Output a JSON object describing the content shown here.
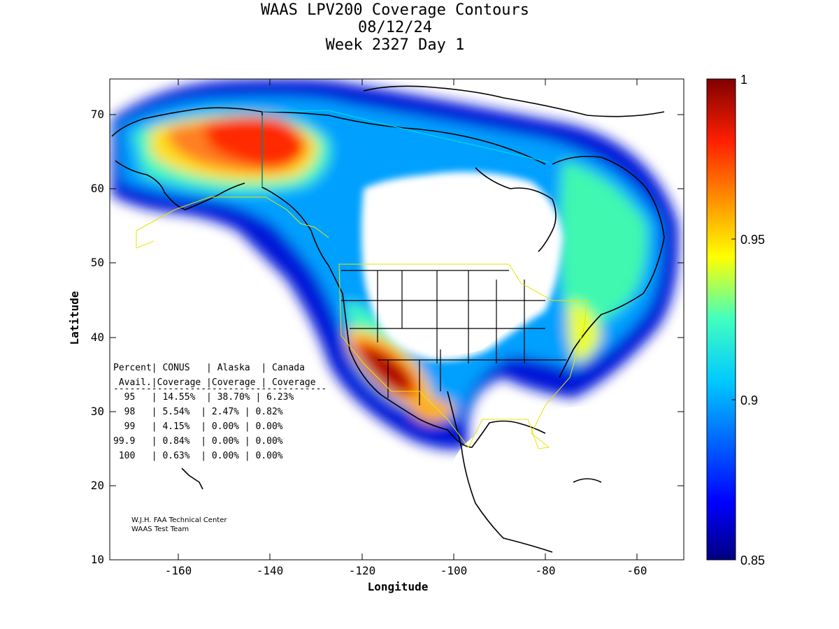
{
  "title": {
    "line1": "WAAS LPV200 Coverage Contours",
    "line2": "08/12/24",
    "line3": "Week 2327 Day 1"
  },
  "axes": {
    "xlabel": "Longitude",
    "ylabel": "Latitude",
    "xlim": [
      -175,
      -50
    ],
    "ylim": [
      10,
      75
    ],
    "xticks": [
      "-160",
      "-140",
      "-120",
      "-100",
      "-80",
      "-60"
    ],
    "yticks": [
      "10",
      "20",
      "30",
      "40",
      "50",
      "60",
      "70"
    ]
  },
  "colorbar": {
    "range": [
      0.85,
      1
    ],
    "ticks": [
      "1",
      "0.95",
      "0.9",
      "0.85"
    ]
  },
  "table": {
    "header1": "Percent| CONUS   | Alaska  | Canada",
    "header2": " Avail.|Coverage |Coverage | Coverage",
    "divider": "---------------------------------------",
    "rows": [
      "  95   | 14.55%  | 38.70% | 6.23%",
      "  98   | 5.54%  | 2.47% | 0.82%",
      "  99   | 4.15%  | 0.00% | 0.00%",
      "99.9   | 0.84%  | 0.00% | 0.00%",
      " 100   | 0.63%  | 0.00% | 0.00%"
    ]
  },
  "credit": {
    "line1": "W.J.H. FAA Technical Center",
    "line2": "WAAS Test Team"
  },
  "colors": {
    "high": "#800000",
    "mid_high": "#ff8000",
    "mid": "#ffff00",
    "mid_low": "#00ffff",
    "low": "#000080"
  }
}
